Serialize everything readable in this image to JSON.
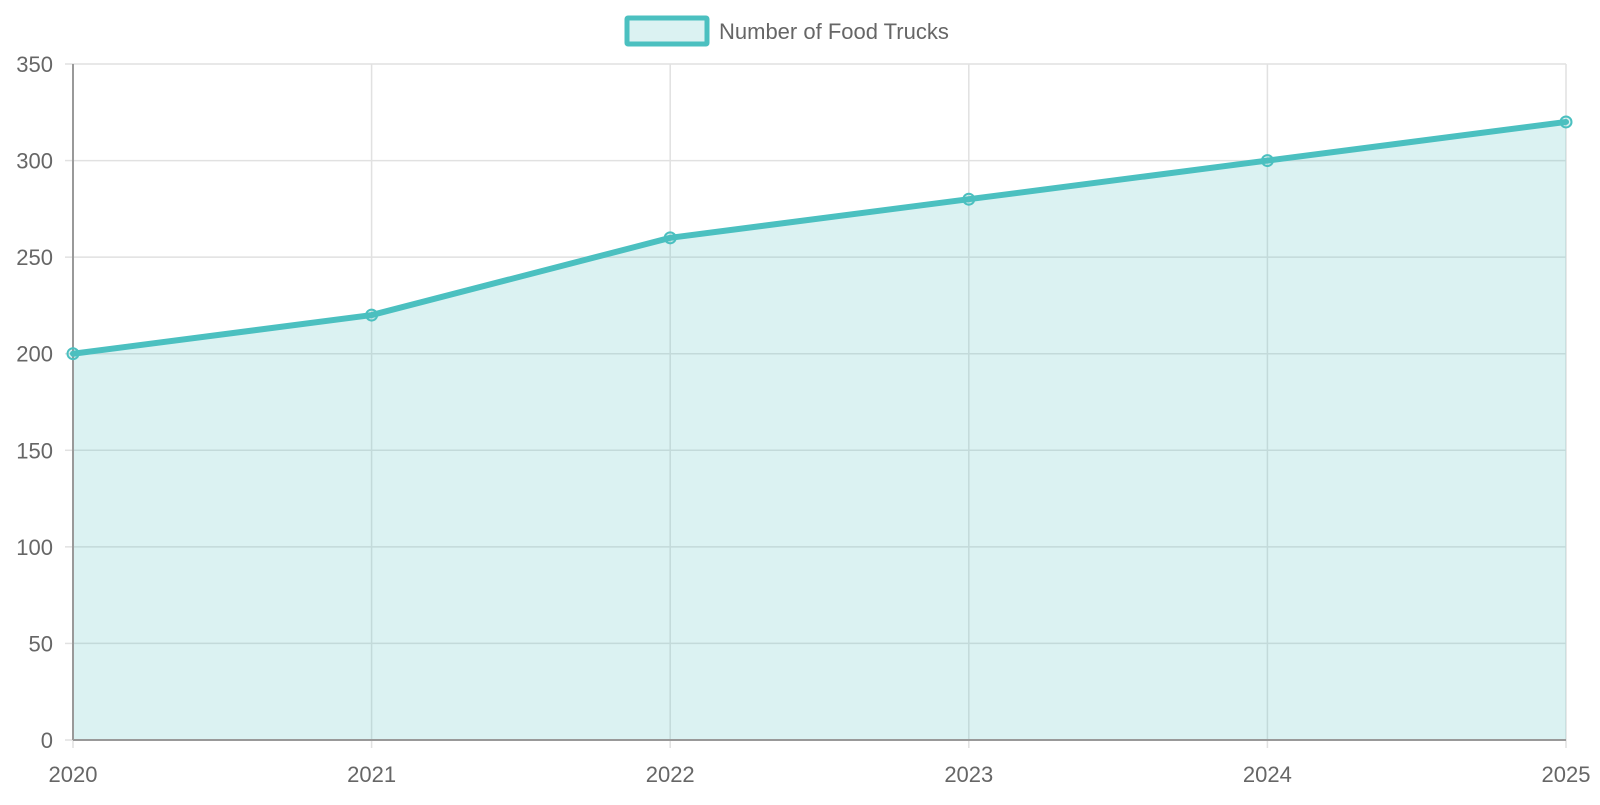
{
  "chart_data": {
    "type": "area",
    "title": "",
    "xlabel": "",
    "ylabel": "",
    "categories": [
      "2020",
      "2021",
      "2022",
      "2023",
      "2024",
      "2025"
    ],
    "series": [
      {
        "name": "Number of Food Trucks",
        "values": [
          200,
          220,
          260,
          280,
          300,
          320
        ],
        "color": "#4bc0c0",
        "fill": "rgba(75,192,192,0.2)"
      }
    ],
    "ylim": [
      0,
      350
    ],
    "yticks": [
      0,
      50,
      100,
      150,
      200,
      250,
      300,
      350
    ],
    "grid": true,
    "legend_position": "top-center"
  }
}
